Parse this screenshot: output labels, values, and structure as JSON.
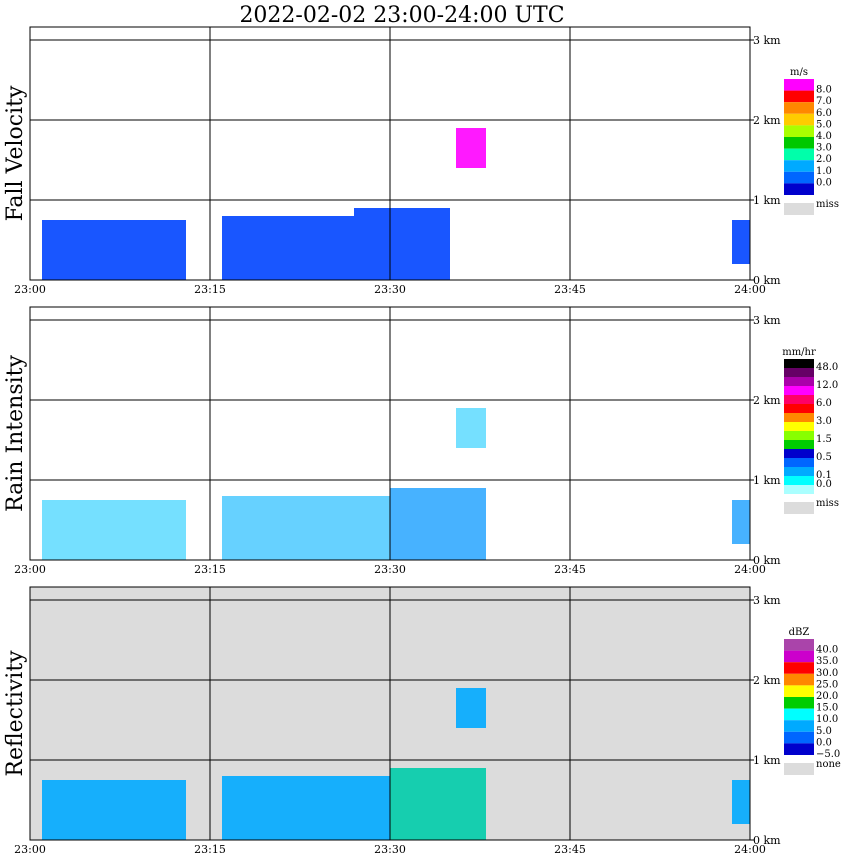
{
  "title": "2022-02-02   23:00-24:00 UTC",
  "colors": {
    "grid": "#000000",
    "none_bg": "#dcdcdc",
    "miss": "#dcdcdc"
  },
  "chart_data": [
    {
      "type": "heatmap",
      "panel": "Fall Velocity",
      "unit": "m/s",
      "x_ticks": [
        "23:00",
        "23:15",
        "23:30",
        "23:45",
        "24:00"
      ],
      "y_ticks": [
        "0 km",
        "1 km",
        "2 km",
        "3 km"
      ],
      "xlim": [
        "23:00",
        "24:00"
      ],
      "ylim_km": [
        0,
        3.5
      ],
      "background": "#ffffff",
      "legend": [
        {
          "label": "8.0",
          "color": "#ff00ff"
        },
        {
          "label": "7.0",
          "color": "#ff0000"
        },
        {
          "label": "6.0",
          "color": "#ff8800"
        },
        {
          "label": "5.0",
          "color": "#ffcc00"
        },
        {
          "label": "4.0",
          "color": "#aaff00"
        },
        {
          "label": "3.0",
          "color": "#00c800"
        },
        {
          "label": "2.0",
          "color": "#00ffaa"
        },
        {
          "label": "1.0",
          "color": "#00aaff"
        },
        {
          "label": "0.0",
          "color": "#0066ff"
        },
        {
          "label": "",
          "color": "#0000cc"
        }
      ],
      "miss_label": "miss",
      "echoes": [
        {
          "t0": 1,
          "t1": 13,
          "z0": 0,
          "z1": 0.75,
          "color": "#0044ff"
        },
        {
          "t0": 16,
          "t1": 27,
          "z0": 0,
          "z1": 0.8,
          "color": "#0044ff"
        },
        {
          "t0": 27,
          "t1": 35,
          "z0": 0,
          "z1": 0.9,
          "color": "#0044ff"
        },
        {
          "t0": 35.5,
          "t1": 38,
          "z0": 1.4,
          "z1": 1.9,
          "color": "#ff00ff"
        },
        {
          "t0": 58.5,
          "t1": 60,
          "z0": 0.2,
          "z1": 0.75,
          "color": "#0044ff"
        }
      ]
    },
    {
      "type": "heatmap",
      "panel": "Rain Intensity",
      "unit": "mm/hr",
      "x_ticks": [
        "23:00",
        "23:15",
        "23:30",
        "23:45",
        "24:00"
      ],
      "y_ticks": [
        "0 km",
        "1 km",
        "2 km",
        "3 km"
      ],
      "xlim": [
        "23:00",
        "24:00"
      ],
      "ylim_km": [
        0,
        3.5
      ],
      "background": "#ffffff",
      "legend": [
        {
          "label": "48.0",
          "color": "#000000"
        },
        {
          "label": "",
          "color": "#660066"
        },
        {
          "label": "12.0",
          "color": "#aa00aa"
        },
        {
          "label": "",
          "color": "#ff00ff"
        },
        {
          "label": "6.0",
          "color": "#ff0066"
        },
        {
          "label": "",
          "color": "#ff0000"
        },
        {
          "label": "3.0",
          "color": "#ff8800"
        },
        {
          "label": "",
          "color": "#ffff00"
        },
        {
          "label": "1.5",
          "color": "#88ff00"
        },
        {
          "label": "",
          "color": "#00cc00"
        },
        {
          "label": "0.5",
          "color": "#0000cc"
        },
        {
          "label": "",
          "color": "#0066ff"
        },
        {
          "label": "0.1",
          "color": "#00aaff"
        },
        {
          "label": "0.0",
          "color": "#00ffff"
        },
        {
          "label": "",
          "color": "#aaffff"
        }
      ],
      "miss_label": "miss",
      "echoes": [
        {
          "t0": 1,
          "t1": 13,
          "z0": 0,
          "z1": 0.75,
          "color": "#66ddff"
        },
        {
          "t0": 16,
          "t1": 30,
          "z0": 0,
          "z1": 0.8,
          "color": "#55ccff"
        },
        {
          "t0": 30,
          "t1": 38,
          "z0": 0,
          "z1": 0.9,
          "color": "#33aaff"
        },
        {
          "t0": 35.5,
          "t1": 38,
          "z0": 1.4,
          "z1": 1.9,
          "color": "#66ddff"
        },
        {
          "t0": 58.5,
          "t1": 60,
          "z0": 0.2,
          "z1": 0.75,
          "color": "#33aaff"
        }
      ]
    },
    {
      "type": "heatmap",
      "panel": "Reflectivity",
      "unit": "dBZ",
      "x_ticks": [
        "23:00",
        "23:15",
        "23:30",
        "23:45",
        "24:00"
      ],
      "y_ticks": [
        "0 km",
        "1 km",
        "2 km",
        "3 km"
      ],
      "xlim": [
        "23:00",
        "24:00"
      ],
      "ylim_km": [
        0,
        3.5
      ],
      "background": "#dcdcdc",
      "legend": [
        {
          "label": "40.0",
          "color": "#aa44aa"
        },
        {
          "label": "35.0",
          "color": "#cc00cc"
        },
        {
          "label": "30.0",
          "color": "#ff0000"
        },
        {
          "label": "25.0",
          "color": "#ff8800"
        },
        {
          "label": "20.0",
          "color": "#ffff00"
        },
        {
          "label": "15.0",
          "color": "#00cc00"
        },
        {
          "label": "10.0",
          "color": "#00ffff"
        },
        {
          "label": "5.0",
          "color": "#00aaff"
        },
        {
          "label": "0.0",
          "color": "#0066ff"
        },
        {
          "label": "−5.0",
          "color": "#0000cc"
        }
      ],
      "miss_label": "none",
      "echoes": [
        {
          "t0": 1,
          "t1": 13,
          "z0": 0,
          "z1": 0.75,
          "color": "#00aaff"
        },
        {
          "t0": 16,
          "t1": 30,
          "z0": 0,
          "z1": 0.8,
          "color": "#00aaff"
        },
        {
          "t0": 30,
          "t1": 38,
          "z0": 0,
          "z1": 0.9,
          "color": "#00ccaa"
        },
        {
          "t0": 35.5,
          "t1": 38,
          "z0": 1.4,
          "z1": 1.9,
          "color": "#00aaff"
        },
        {
          "t0": 58.5,
          "t1": 60,
          "z0": 0.2,
          "z1": 0.75,
          "color": "#00aaff"
        }
      ]
    }
  ]
}
